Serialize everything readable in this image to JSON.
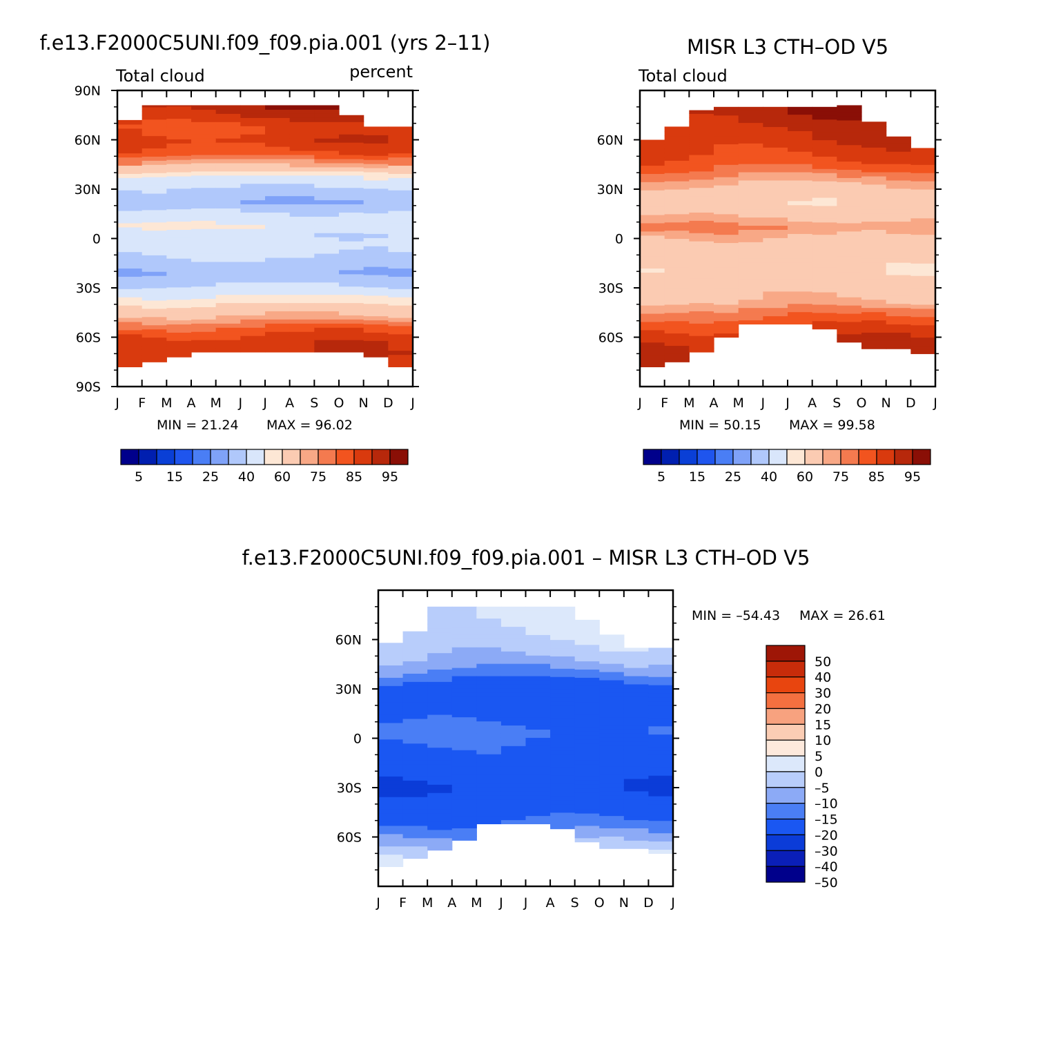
{
  "colors": {
    "model_palette": [
      "#00008b",
      "#001fb0",
      "#0a3fd6",
      "#1f55ee",
      "#4a7ef5",
      "#7fa2f8",
      "#b0c8fb",
      "#d9e6fb",
      "#fde7d5",
      "#fbcbb2",
      "#f8a886",
      "#f47a4f",
      "#f2541f",
      "#d93a0e",
      "#b7280b",
      "#8a0f06"
    ],
    "diff_palette": [
      "#00008b",
      "#0a1fb8",
      "#0b3cd8",
      "#1a57f2",
      "#4a7ef5",
      "#8caaf6",
      "#b8cdfb",
      "#dce8fb",
      "#fde9dc",
      "#fbcdb4",
      "#f7a27f",
      "#f47040",
      "#e8450f",
      "#c82c0a",
      "#9e1606"
    ]
  },
  "chart_data": [
    {
      "id": "model",
      "type": "heatmap",
      "title": "f.e13.F2000C5UNI.f09_f09.pia.001 (yrs 2–11)",
      "left_label": "Total cloud",
      "right_label": "percent",
      "x_ticks": [
        "J",
        "F",
        "M",
        "A",
        "M",
        "J",
        "J",
        "A",
        "S",
        "O",
        "N",
        "D",
        "J"
      ],
      "y_ticks": [
        "90N",
        "60N",
        "30N",
        "0",
        "30S",
        "60S",
        "90S"
      ],
      "y_tick_values": [
        90,
        60,
        30,
        0,
        -30,
        -60,
        -90
      ],
      "ylim": [
        -90,
        90
      ],
      "min_text": "MIN =   21.24",
      "max_text": "MAX =   96.02",
      "min": 21.24,
      "max": 96.02,
      "colorbar_labels": [
        "5",
        "15",
        "25",
        "40",
        "60",
        "75",
        "85",
        "95"
      ],
      "coverage_north": [
        72,
        81,
        81,
        81,
        81,
        81,
        81,
        81,
        81,
        75,
        68,
        68
      ],
      "coverage_south": [
        -78,
        -75,
        -72,
        -69,
        -69,
        -69,
        -69,
        -69,
        -69,
        -69,
        -72,
        -78
      ],
      "profile": [
        [
          -80,
          85
        ],
        [
          -70,
          88
        ],
        [
          -62,
          88
        ],
        [
          -55,
          82
        ],
        [
          -48,
          72
        ],
        [
          -40,
          60
        ],
        [
          -32,
          44
        ],
        [
          -25,
          36
        ],
        [
          -20,
          30
        ],
        [
          -15,
          36
        ],
        [
          -8,
          42
        ],
        [
          -3,
          44
        ],
        [
          2,
          42
        ],
        [
          7,
          50
        ],
        [
          12,
          46
        ],
        [
          17,
          40
        ],
        [
          22,
          30
        ],
        [
          27,
          35
        ],
        [
          32,
          42
        ],
        [
          38,
          50
        ],
        [
          45,
          72
        ],
        [
          52,
          83
        ],
        [
          60,
          88
        ],
        [
          68,
          85
        ],
        [
          75,
          90
        ],
        [
          80,
          93
        ]
      ]
    },
    {
      "id": "obs",
      "type": "heatmap",
      "title": "MISR L3 CTH–OD V5",
      "left_label": "Total cloud",
      "x_ticks": [
        "J",
        "F",
        "M",
        "A",
        "M",
        "J",
        "J",
        "A",
        "S",
        "O",
        "N",
        "D",
        "J"
      ],
      "y_ticks": [
        "60N",
        "30N",
        "0",
        "30S",
        "60S"
      ],
      "y_tick_values": [
        60,
        30,
        0,
        -30,
        -60
      ],
      "ylim": [
        -90,
        90
      ],
      "min_text": "MIN =   50.15",
      "max_text": "MAX =   99.58",
      "min": 50.15,
      "max": 99.58,
      "colorbar_labels": [
        "5",
        "15",
        "25",
        "40",
        "60",
        "75",
        "85",
        "95"
      ],
      "coverage_north": [
        60,
        68,
        78,
        80,
        80,
        80,
        80,
        80,
        81,
        71,
        62,
        55
      ],
      "coverage_south": [
        -78,
        -75,
        -69,
        -60,
        -52,
        -52,
        -52,
        -55,
        -63,
        -67,
        -67,
        -70
      ],
      "profile": [
        [
          -80,
          93
        ],
        [
          -70,
          92
        ],
        [
          -62,
          90
        ],
        [
          -55,
          86
        ],
        [
          -45,
          78
        ],
        [
          -38,
          70
        ],
        [
          -30,
          66
        ],
        [
          -20,
          62
        ],
        [
          -10,
          64
        ],
        [
          -3,
          66
        ],
        [
          2,
          70
        ],
        [
          7,
          76
        ],
        [
          12,
          70
        ],
        [
          17,
          66
        ],
        [
          22,
          62
        ],
        [
          28,
          65
        ],
        [
          35,
          72
        ],
        [
          42,
          80
        ],
        [
          50,
          86
        ],
        [
          58,
          88
        ],
        [
          65,
          90
        ],
        [
          72,
          92
        ],
        [
          80,
          94
        ]
      ]
    },
    {
      "id": "diff",
      "type": "heatmap",
      "title": "f.e13.F2000C5UNI.f09_f09.pia.001 – MISR L3 CTH–OD V5",
      "x_ticks": [
        "J",
        "F",
        "M",
        "A",
        "M",
        "J",
        "J",
        "A",
        "S",
        "O",
        "N",
        "D",
        "J"
      ],
      "y_ticks": [
        "60N",
        "30N",
        "0",
        "30S",
        "60S"
      ],
      "y_tick_values": [
        60,
        30,
        0,
        -30,
        -60
      ],
      "ylim": [
        -90,
        90
      ],
      "min_text": "MIN = –54.43",
      "max_text": "MAX =   26.61",
      "min": -54.43,
      "max": 26.61,
      "colorbar_labels": [
        "50",
        "40",
        "30",
        "20",
        "15",
        "10",
        "5",
        "0",
        "–5",
        "–10",
        "–15",
        "–20",
        "–30",
        "–40",
        "–50"
      ],
      "coverage_north": [
        58,
        65,
        80,
        80,
        80,
        80,
        80,
        80,
        72,
        63,
        55,
        55
      ],
      "coverage_south": [
        -78,
        -73,
        -68,
        -62,
        -52,
        -52,
        -52,
        -55,
        -63,
        -67,
        -67,
        -70
      ],
      "profile": [
        [
          -80,
          -4
        ],
        [
          -70,
          -6
        ],
        [
          -62,
          -12
        ],
        [
          -55,
          -17
        ],
        [
          -48,
          -22
        ],
        [
          -40,
          -25
        ],
        [
          -30,
          -30
        ],
        [
          -20,
          -26
        ],
        [
          -12,
          -24
        ],
        [
          -5,
          -22
        ],
        [
          0,
          -20
        ],
        [
          5,
          -18
        ],
        [
          10,
          -22
        ],
        [
          18,
          -24
        ],
        [
          25,
          -25
        ],
        [
          32,
          -24
        ],
        [
          38,
          -18
        ],
        [
          45,
          -12
        ],
        [
          52,
          -8
        ],
        [
          60,
          -6
        ],
        [
          70,
          -4
        ],
        [
          78,
          -3
        ]
      ]
    }
  ]
}
